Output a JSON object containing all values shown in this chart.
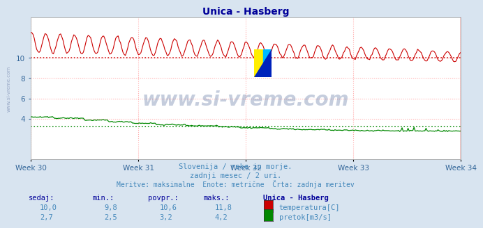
{
  "title": "Unica - Hasberg",
  "title_color": "#000099",
  "bg_color": "#d8e4f0",
  "plot_bg_color": "#ffffff",
  "grid_color": "#ffaaaa",
  "xlabel_weeks": [
    "Week 30",
    "Week 31",
    "Week 32",
    "Week 33",
    "Week 34"
  ],
  "yticks": [
    4,
    6,
    8,
    10
  ],
  "ylim": [
    0,
    14
  ],
  "n_points": 360,
  "temp_color": "#cc0000",
  "flow_color": "#008800",
  "watermark_text": "www.si-vreme.com",
  "watermark_color": "#1a3a7a",
  "watermark_alpha": 0.25,
  "subtitle1": "Slovenija / reke in morje.",
  "subtitle2": "zadnji mesec / 2 uri.",
  "subtitle3": "Meritve: maksimalne  Enote: metrične  Črta: zadnja meritev",
  "subtitle_color": "#4488bb",
  "table_header_color": "#000099",
  "table_value_color": "#4488bb",
  "hline_temp_color": "#cc0000",
  "hline_flow_color": "#008800",
  "vline_color": "#cc0000",
  "logo_yellow": "#ffee00",
  "logo_cyan": "#00bbff",
  "logo_blue": "#0022bb",
  "left_watermark_color": "#8899bb"
}
